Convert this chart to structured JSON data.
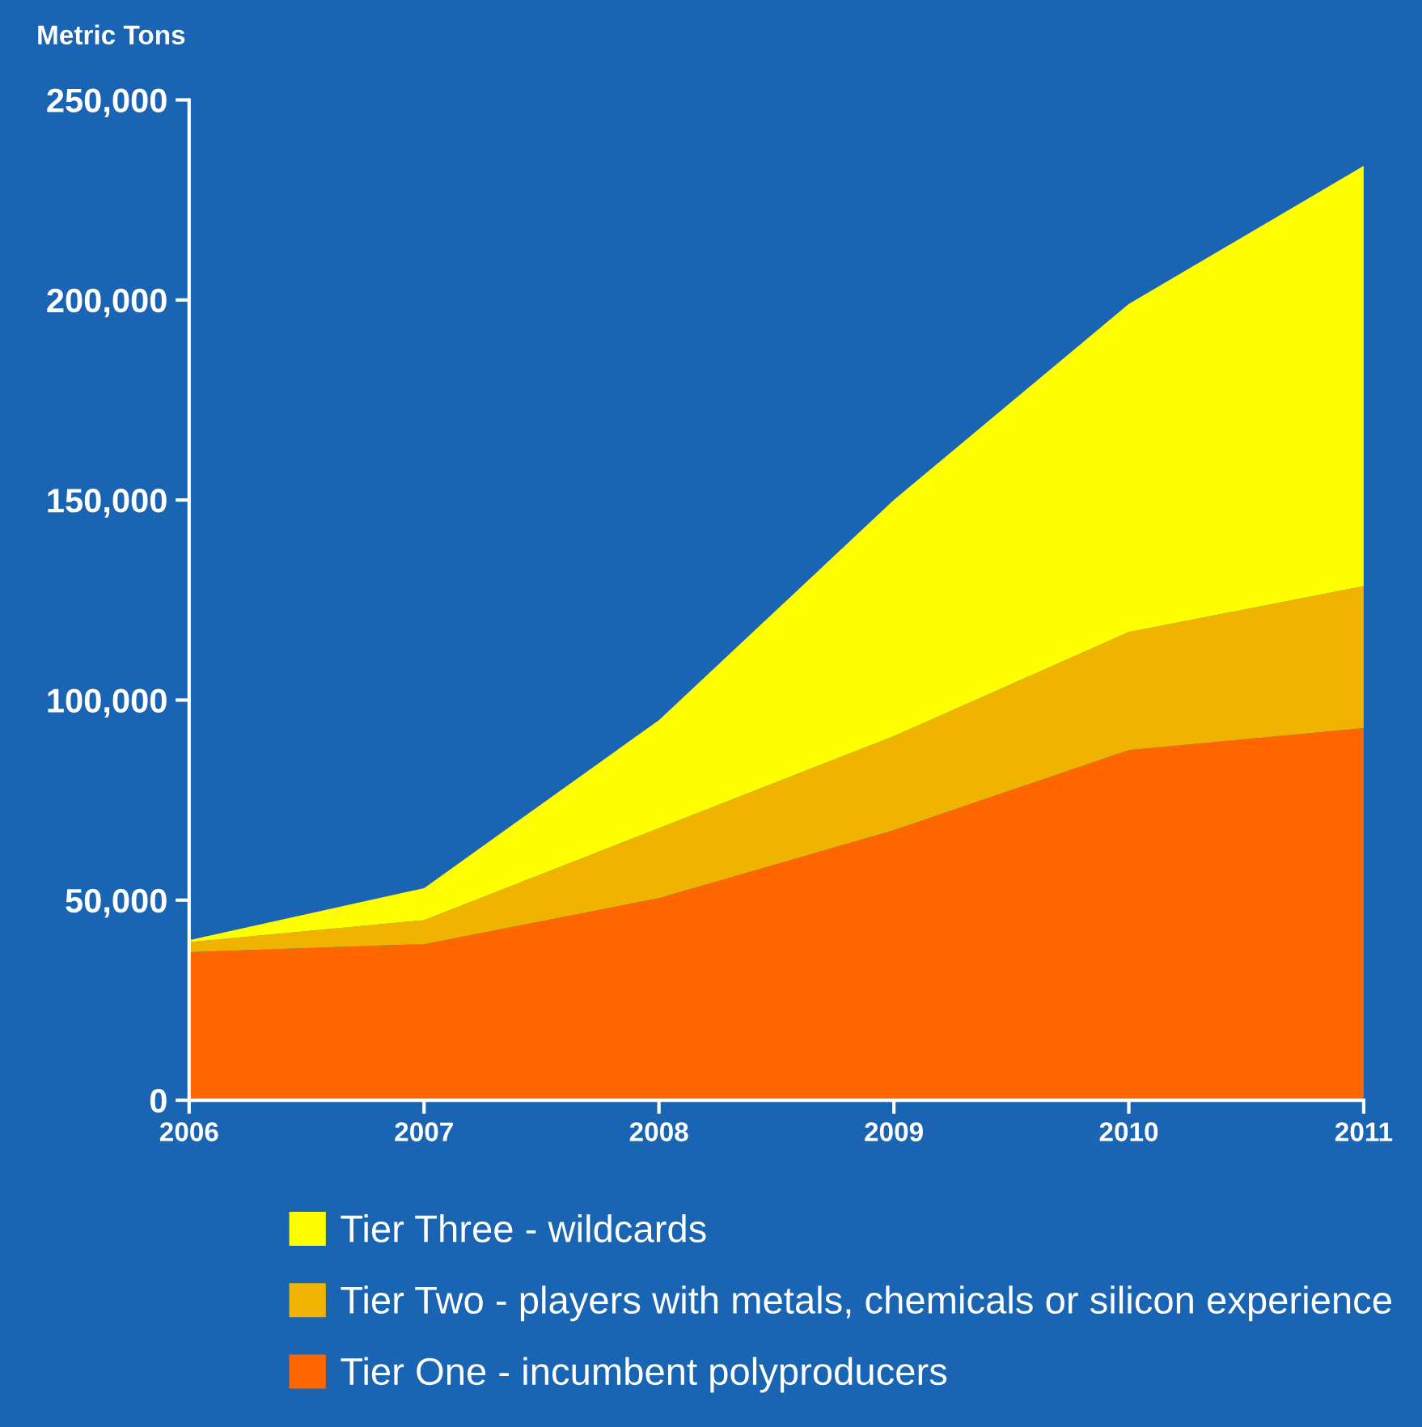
{
  "chart_data": {
    "type": "area",
    "stacked": true,
    "ylabel": "Metric Tons",
    "x": [
      2006,
      2007,
      2008,
      2009,
      2010,
      2011
    ],
    "xlim": [
      2006,
      2011
    ],
    "xticks": [
      2006,
      2007,
      2008,
      2009,
      2010,
      2011
    ],
    "ylim": [
      0,
      250000
    ],
    "yticks": [
      {
        "value": 0,
        "label": "0"
      },
      {
        "value": 50000,
        "label": "50,000"
      },
      {
        "value": 100000,
        "label": "100,000"
      },
      {
        "value": 150000,
        "label": "150,000"
      },
      {
        "value": 200000,
        "label": "200,000"
      },
      {
        "value": 250000,
        "label": "250,000"
      }
    ],
    "grid": false,
    "legend": "bottom",
    "series": [
      {
        "name": "Tier One - incumbent polyproducers",
        "color": "#ff6600",
        "values": [
          37000,
          39000,
          50500,
          67500,
          87500,
          93000
        ]
      },
      {
        "name": "Tier Two - players with metals, chemicals or silicon experience",
        "color": "#f0b400",
        "values": [
          2500,
          6000,
          17500,
          23500,
          29500,
          35500
        ]
      },
      {
        "name": "Tier Three - wildcards",
        "color": "#ffff00",
        "values": [
          500,
          8000,
          27000,
          59000,
          82000,
          105000
        ]
      }
    ]
  }
}
